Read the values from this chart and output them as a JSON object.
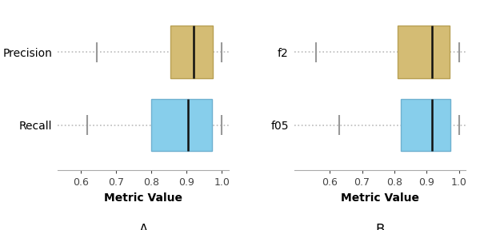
{
  "panel_A": {
    "labels": [
      "Precision",
      "Recall"
    ],
    "colors": [
      "#D4BC74",
      "#87CEEB"
    ],
    "edge_colors": [
      "#B8A055",
      "#6EB0D0"
    ],
    "boxes": [
      {
        "whislo": 0.645,
        "q1": 0.855,
        "med": 0.92,
        "q3": 0.975,
        "whishi": 1.0
      },
      {
        "whislo": 0.618,
        "q1": 0.8,
        "med": 0.905,
        "q3": 0.972,
        "whishi": 1.0
      }
    ],
    "xlabel": "Metric Value",
    "title": "A",
    "xlim": [
      0.535,
      1.02
    ],
    "xticks": [
      0.6,
      0.7,
      0.8,
      0.9,
      1.0
    ]
  },
  "panel_B": {
    "labels": [
      "f2",
      "f05"
    ],
    "colors": [
      "#D4BC74",
      "#87CEEB"
    ],
    "edge_colors": [
      "#B8A055",
      "#6EB0D0"
    ],
    "boxes": [
      {
        "whislo": 0.558,
        "q1": 0.81,
        "med": 0.915,
        "q3": 0.97,
        "whishi": 1.0
      },
      {
        "whislo": 0.63,
        "q1": 0.82,
        "med": 0.915,
        "q3": 0.972,
        "whishi": 1.0
      }
    ],
    "xlabel": "Metric Value",
    "title": "B",
    "xlim": [
      0.49,
      1.02
    ],
    "xticks": [
      0.6,
      0.7,
      0.8,
      0.9,
      1.0
    ]
  },
  "box_width": 0.72,
  "median_color": "#111111",
  "whisker_color": "#999999",
  "background_color": "#ffffff",
  "dotted_line_color": "#bbbbbb",
  "title_fontsize": 12,
  "label_fontsize": 10,
  "tick_fontsize": 9,
  "xlabel_fontsize": 10
}
